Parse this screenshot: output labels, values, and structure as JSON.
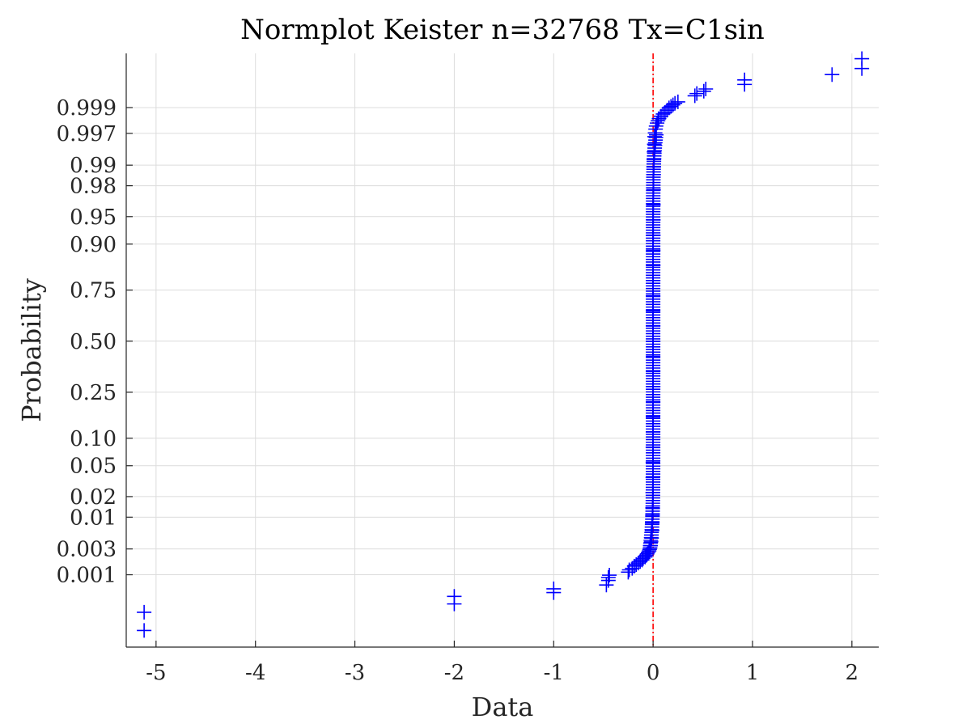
{
  "chart_data": {
    "type": "scatter",
    "title": "Normplot Keister n=32768 Tx=C1sin",
    "xlabel": "Data",
    "ylabel": "Probability",
    "xlim": [
      -5.3,
      2.27
    ],
    "xticks": [
      -5,
      -4,
      -3,
      -2,
      -1,
      0,
      1,
      2
    ],
    "xtick_labels": [
      "-5",
      "-4",
      "-3",
      "-2",
      "-1",
      "0",
      "1",
      "2"
    ],
    "yticks": [
      0.001,
      0.003,
      0.01,
      0.02,
      0.05,
      0.1,
      0.25,
      0.5,
      0.75,
      0.9,
      0.95,
      0.98,
      0.99,
      0.997,
      0.999
    ],
    "ytick_labels": [
      "0.001",
      "0.003",
      "0.01",
      "0.02",
      "0.05",
      "0.10",
      "0.25",
      "0.50",
      "0.75",
      "0.90",
      "0.95",
      "0.98",
      "0.99",
      "0.997",
      "0.999"
    ],
    "ylim_z": [
      -4.04,
      3.8
    ],
    "grid": true,
    "reference_line_x": 0,
    "reference_line_color": "#ff0000",
    "marker_color": "#0000ff",
    "marker": "+",
    "series": [
      {
        "points": [
          [
            -5.12,
            -3.82
          ],
          [
            -5.12,
            -3.58
          ],
          [
            -2.0,
            -3.47
          ],
          [
            -2.0,
            -3.37
          ],
          [
            -1.0,
            -3.32
          ],
          [
            -1.0,
            -3.27
          ],
          [
            -0.47,
            -3.22
          ],
          [
            -0.45,
            -3.16
          ],
          [
            -0.45,
            -3.12
          ],
          [
            -0.44,
            -3.09
          ],
          [
            -0.25,
            -3.05
          ],
          [
            -0.24,
            -3.02
          ],
          [
            -0.21,
            -3.0
          ],
          [
            -0.19,
            -2.97
          ],
          [
            -0.17,
            -2.95
          ],
          [
            -0.15,
            -2.93
          ],
          [
            -0.13,
            -2.91
          ],
          [
            -0.11,
            -2.89
          ],
          [
            -0.1,
            -2.87
          ],
          [
            -0.08,
            -2.85
          ],
          [
            -0.07,
            -2.83
          ],
          [
            -0.06,
            -2.81
          ],
          [
            -0.05,
            -2.79
          ],
          [
            -0.04,
            -2.77
          ],
          [
            -0.035,
            -2.75
          ],
          [
            -0.03,
            -2.73
          ],
          [
            -0.025,
            -2.7
          ],
          [
            -0.02,
            -2.65
          ],
          [
            -0.015,
            -2.6
          ],
          [
            -0.01,
            -2.5
          ],
          [
            -0.008,
            -2.4
          ],
          [
            -0.006,
            -2.3
          ],
          [
            -0.005,
            -2.2
          ],
          [
            -0.004,
            -2.0
          ],
          [
            -0.003,
            -1.8
          ],
          [
            -0.002,
            -1.6
          ],
          [
            -0.002,
            -1.4
          ],
          [
            -0.001,
            -1.2
          ],
          [
            -0.001,
            -1.0
          ],
          [
            0.0,
            -0.8
          ],
          [
            0.0,
            -0.6
          ],
          [
            0.0,
            -0.4
          ],
          [
            0.0,
            -0.2
          ],
          [
            0.0,
            0.0
          ],
          [
            0.0,
            0.2
          ],
          [
            0.0,
            0.4
          ],
          [
            0.0,
            0.6
          ],
          [
            0.0,
            0.8
          ],
          [
            0.001,
            1.0
          ],
          [
            0.001,
            1.2
          ],
          [
            0.002,
            1.4
          ],
          [
            0.002,
            1.6
          ],
          [
            0.003,
            1.8
          ],
          [
            0.004,
            2.0
          ],
          [
            0.005,
            2.2
          ],
          [
            0.006,
            2.3
          ],
          [
            0.008,
            2.4
          ],
          [
            0.01,
            2.5
          ],
          [
            0.012,
            2.6
          ],
          [
            0.015,
            2.7
          ],
          [
            0.02,
            2.75
          ],
          [
            0.025,
            2.8
          ],
          [
            0.03,
            2.84
          ],
          [
            0.04,
            2.88
          ],
          [
            0.05,
            2.91
          ],
          [
            0.06,
            2.94
          ],
          [
            0.08,
            2.97
          ],
          [
            0.1,
            3.0
          ],
          [
            0.12,
            3.02
          ],
          [
            0.14,
            3.05
          ],
          [
            0.16,
            3.08
          ],
          [
            0.18,
            3.1
          ],
          [
            0.2,
            3.12
          ],
          [
            0.22,
            3.14
          ],
          [
            0.25,
            3.16
          ],
          [
            0.42,
            3.24
          ],
          [
            0.44,
            3.27
          ],
          [
            0.51,
            3.3
          ],
          [
            0.53,
            3.33
          ],
          [
            0.92,
            3.39
          ],
          [
            0.92,
            3.45
          ],
          [
            1.8,
            3.52
          ],
          [
            2.1,
            3.6
          ],
          [
            2.1,
            3.73
          ]
        ]
      }
    ]
  }
}
